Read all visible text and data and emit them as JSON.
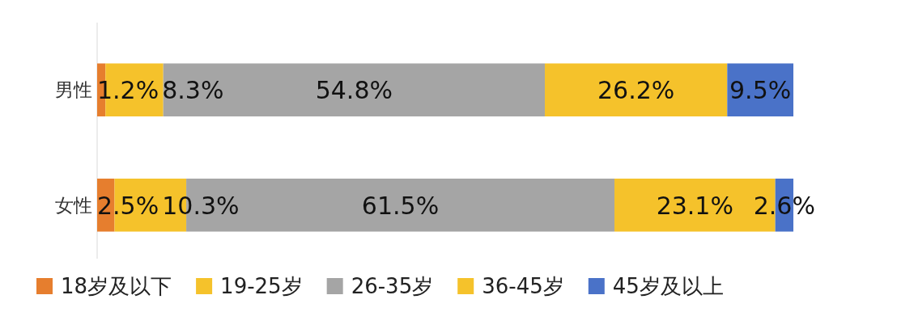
{
  "chart_data": {
    "type": "bar",
    "orientation": "horizontal",
    "stacked": true,
    "legend": "bottom",
    "categories": [
      "男性",
      "女性"
    ],
    "series": [
      {
        "name": "18岁及以下",
        "color": "#e67e2e",
        "values": [
          1.2,
          2.5
        ],
        "value_labels": [
          "1.2%",
          "2.5%"
        ]
      },
      {
        "name": "19-25岁",
        "color": "#f5c22b",
        "values": [
          8.3,
          10.3
        ],
        "value_labels": [
          "8.3%",
          "10.3%"
        ]
      },
      {
        "name": "26-35岁",
        "color": "#a5a5a5",
        "values": [
          54.8,
          61.5
        ],
        "value_labels": [
          "54.8%",
          "61.5%"
        ]
      },
      {
        "name": "36-45岁",
        "color": "#f5c22b",
        "values": [
          26.2,
          23.1
        ],
        "value_labels": [
          "26.2%",
          "23.1%"
        ]
      },
      {
        "name": "45岁及以上",
        "color": "#4a72c8",
        "values": [
          9.5,
          2.6
        ],
        "value_labels": [
          "9.5%",
          "2.6%"
        ]
      }
    ]
  }
}
